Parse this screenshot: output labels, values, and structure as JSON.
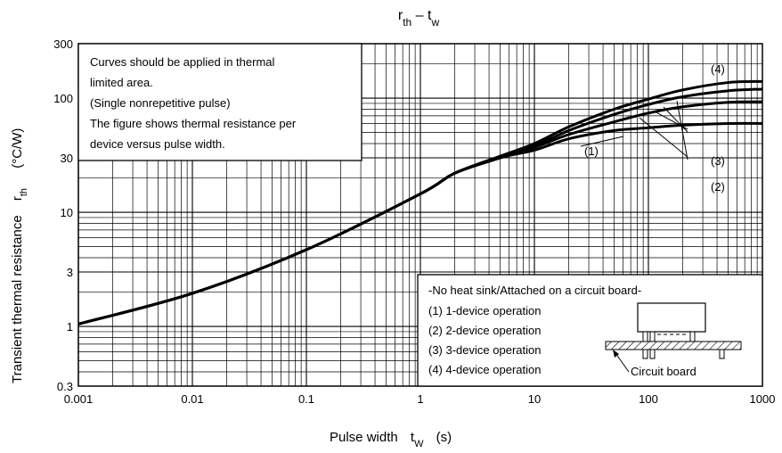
{
  "chart_data": {
    "type": "line",
    "title": {
      "main": "r",
      "sub": "th",
      "dash": " – t",
      "sub2": "w"
    },
    "xlabel": {
      "text": "Pulse width",
      "sym": "t",
      "sub": "W",
      "unit": "(s)"
    },
    "ylabel": {
      "text": "Transient thermal resistance",
      "sym": "r",
      "sub": "th",
      "unit": "(°C/W)"
    },
    "xscale": "log",
    "yscale": "log",
    "xlim": [
      0.001,
      1000
    ],
    "ylim": [
      0.3,
      300
    ],
    "x_ticks": [
      {
        "v": 0.001,
        "label": "0.001"
      },
      {
        "v": 0.01,
        "label": "0.01"
      },
      {
        "v": 0.1,
        "label": "0.1"
      },
      {
        "v": 1,
        "label": "1"
      },
      {
        "v": 10,
        "label": "10"
      },
      {
        "v": 100,
        "label": "100"
      },
      {
        "v": 1000,
        "label": "1000"
      }
    ],
    "y_ticks": [
      {
        "v": 0.3,
        "label": "0.3"
      },
      {
        "v": 1,
        "label": "1"
      },
      {
        "v": 3,
        "label": "3"
      },
      {
        "v": 10,
        "label": "10"
      },
      {
        "v": 30,
        "label": "30"
      },
      {
        "v": 100,
        "label": "100"
      },
      {
        "v": 300,
        "label": "300"
      }
    ],
    "grid": true,
    "series": [
      {
        "name": "(1)",
        "x": [
          0.001,
          0.01,
          0.1,
          1,
          2,
          5,
          10,
          20,
          50,
          100,
          200,
          500,
          1000
        ],
        "y": [
          1.05,
          1.95,
          4.7,
          14.5,
          22,
          30,
          35,
          44,
          52,
          55,
          58,
          60,
          60
        ]
      },
      {
        "name": "(2)",
        "x": [
          0.001,
          0.01,
          0.1,
          1,
          2,
          5,
          10,
          20,
          50,
          100,
          200,
          500,
          1000
        ],
        "y": [
          1.05,
          1.95,
          4.7,
          14.5,
          22,
          30,
          37,
          48,
          62,
          74,
          84,
          92,
          93
        ]
      },
      {
        "name": "(3)",
        "x": [
          0.001,
          0.01,
          0.1,
          1,
          2,
          5,
          10,
          20,
          50,
          100,
          200,
          500,
          1000
        ],
        "y": [
          1.05,
          1.95,
          4.7,
          14.5,
          22,
          30,
          38,
          52,
          72,
          88,
          103,
          116,
          120
        ]
      },
      {
        "name": "(4)",
        "x": [
          0.001,
          0.01,
          0.1,
          1,
          2,
          5,
          10,
          20,
          50,
          100,
          200,
          500,
          1000
        ],
        "y": [
          1.05,
          1.95,
          4.7,
          14.5,
          22,
          31,
          40,
          56,
          80,
          98,
          118,
          137,
          140
        ]
      }
    ],
    "annotations": {
      "note": [
        "Curves should be applied in thermal",
        "limited area.",
        "(Single nonrepetitive pulse)",
        "The figure shows thermal resistance per",
        "device versus pulse width."
      ],
      "legend_title": "-No heat sink/Attached on a circuit board-",
      "legend_items": [
        "(1) 1-device operation",
        "(2) 2-device operation",
        "(3) 3-device operation",
        "(4) 4-device operation"
      ],
      "circuit_board_label": "Circuit board"
    }
  }
}
